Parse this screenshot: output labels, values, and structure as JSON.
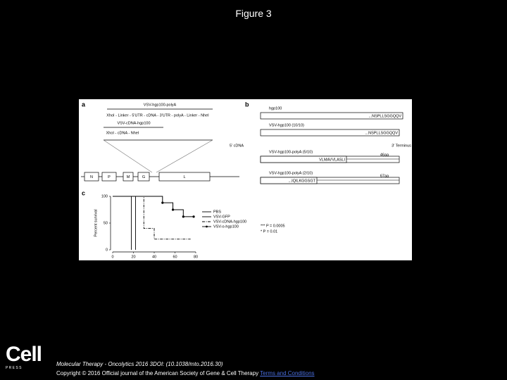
{
  "slide_title": "Figure 3",
  "figure": {
    "panel_a": {
      "label": "a",
      "construct_1": "VSV-hgp100-polyA",
      "construct_1_parts": "XhoI - Linker - 5'UTR - cDNA - 3'UTR - polyA - Linker - NheI",
      "construct_2": "VSV-cDNA-hgp100",
      "construct_2_parts": "XhoI - cDNA - NheI",
      "genes": [
        "N",
        "P",
        "M",
        "G",
        "L"
      ]
    },
    "panel_b": {
      "label": "b",
      "five_prime": "5' cDNA",
      "three_prime": "3' Terminus",
      "rows": [
        {
          "name": "hgp100",
          "sequence": "...NSPLLSGGQQV"
        },
        {
          "name": "VSV-hgp100 (10/10)",
          "sequence": "...NSPLLSGGQQV"
        },
        {
          "name": "VSV-hgp100-polyA (5/10)",
          "sequence": "VLMAVVLASLI",
          "length": "46aa"
        },
        {
          "name": "VSV-hgp100-polyA (2/10)",
          "sequence": "...IQILKGGSGT",
          "length": "67aa"
        }
      ]
    },
    "panel_c_label": "c",
    "stats": [
      "*** P = 0.0005",
      "* P = 0.01"
    ]
  },
  "chart_data": {
    "type": "step",
    "ylabel": "Percent survival",
    "xlim": [
      0,
      80
    ],
    "ylim": [
      0,
      100
    ],
    "xticks": [
      0,
      20,
      40,
      60,
      80
    ],
    "yticks": [
      0,
      50,
      100
    ],
    "series": [
      {
        "name": "PBS",
        "color": "#000000",
        "dash": "solid",
        "x": [
          0,
          18
        ],
        "values": [
          100,
          0
        ]
      },
      {
        "name": "VSV-GFP",
        "color": "#000000",
        "dash": "solid",
        "x": [
          0,
          22
        ],
        "values": [
          100,
          0
        ]
      },
      {
        "name": "VSV-cDNA-hgp100",
        "color": "#000000",
        "dash": "dashdot",
        "x": [
          0,
          30,
          40,
          75
        ],
        "values": [
          100,
          40,
          20,
          20
        ]
      },
      {
        "name": "VSV-o-hgp100",
        "color": "#000000",
        "dash": "marker",
        "x": [
          0,
          48,
          58,
          68,
          78
        ],
        "values": [
          100,
          88,
          75,
          62,
          62
        ]
      }
    ]
  },
  "footer": {
    "logo_word": "Cell",
    "logo_sub": "P R E S S",
    "citation": "Molecular Therapy - Oncolytics 2016 3DOI: (10.1038/mto.2016.30)",
    "copyright": "Copyright © 2016 Official journal of the American Society of Gene & Cell Therapy",
    "link": "Terms and Conditions"
  }
}
